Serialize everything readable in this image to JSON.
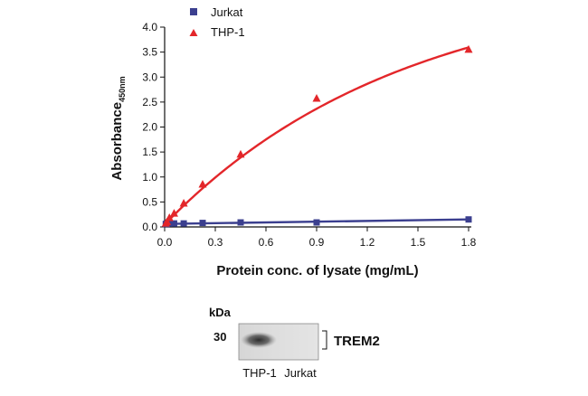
{
  "chart_data": {
    "type": "line",
    "title": "",
    "xlabel": "Protein conc. of lysate (mg/mL)",
    "ylabel_main": "Absorbance",
    "ylabel_sub": "450nm",
    "xlim": [
      0,
      1.8
    ],
    "ylim": [
      0,
      4.0
    ],
    "xticks": [
      0.0,
      0.3,
      0.6,
      0.9,
      1.2,
      1.5,
      1.8
    ],
    "xtick_labels": [
      "0.0",
      "0.3",
      "0.6",
      "0.9",
      "1.2",
      "1.5",
      "1.8"
    ],
    "yticks": [
      0.0,
      0.5,
      1.0,
      1.5,
      2.0,
      2.5,
      3.0,
      3.5,
      4.0
    ],
    "ytick_labels": [
      "0.0",
      "0.5",
      "1.0",
      "1.5",
      "2.0",
      "2.5",
      "3.0",
      "3.5",
      "4.0"
    ],
    "grid": false,
    "legend_position": "top",
    "series": [
      {
        "name": "Jurkat",
        "marker": "square",
        "color": "#3b3f8f",
        "x": [
          0.007,
          0.014,
          0.028,
          0.056,
          0.113,
          0.225,
          0.45,
          0.9,
          1.8
        ],
        "y": [
          0.06,
          0.06,
          0.07,
          0.07,
          0.07,
          0.08,
          0.09,
          0.09,
          0.15
        ]
      },
      {
        "name": "THP-1",
        "marker": "triangle",
        "color": "#e3262a",
        "x": [
          0.007,
          0.014,
          0.028,
          0.056,
          0.113,
          0.225,
          0.45,
          0.9,
          1.8
        ],
        "y": [
          0.07,
          0.1,
          0.18,
          0.27,
          0.47,
          0.85,
          1.45,
          2.57,
          3.55
        ]
      }
    ]
  },
  "blot": {
    "unit_label": "kDa",
    "marker_label": "30",
    "protein_label": "TREM2",
    "lanes": [
      "THP-1",
      "Jurkat"
    ],
    "band_color": "#2a2a2a"
  }
}
